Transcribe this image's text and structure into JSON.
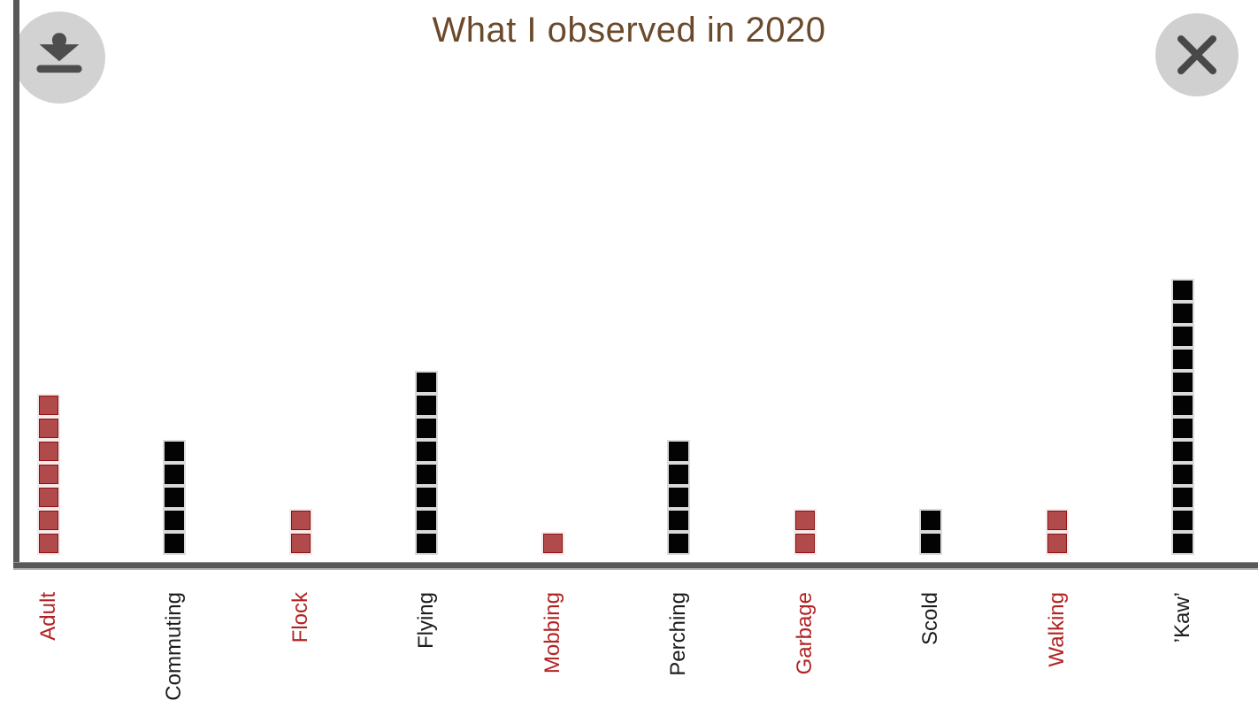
{
  "header": {
    "title": "What I observed in 2020"
  },
  "icons": {
    "download": "download-icon",
    "close": "close-icon"
  },
  "colors": {
    "title_text": "#6b4a2b",
    "axis": "#58585a",
    "button_background": "#d2d2d2",
    "button_icon": "#4d4d4d",
    "red_square_fill": "#b14b4b",
    "red_square_edge": "#8e1010",
    "black_square_fill": "#030303",
    "red_tick_label": "#b22222",
    "black_tick_label": "#1c1c1c"
  },
  "chart_data": {
    "type": "bar",
    "subtype": "unit-square stacked pictogram (1 square = 1 count)",
    "title": "What I observed in 2020",
    "categories": [
      "Adult",
      "Commuting",
      "Flock",
      "Flying",
      "Mobbing",
      "Perching",
      "Garbage",
      "Scold",
      "Walking",
      "’Kaw’"
    ],
    "values": [
      7,
      5,
      2,
      8,
      1,
      5,
      2,
      2,
      2,
      12
    ],
    "bar_colors": [
      "red",
      "black",
      "red",
      "black",
      "red",
      "black",
      "red",
      "black",
      "red",
      "black"
    ],
    "tick_label_colors": [
      "red",
      "black",
      "red",
      "black",
      "red",
      "black",
      "red",
      "black",
      "red",
      "black"
    ],
    "xlabel": "",
    "ylabel": "",
    "ylim": [
      0,
      12
    ],
    "grid": false,
    "legend": "none",
    "tick_label_rotation_deg": 90
  }
}
